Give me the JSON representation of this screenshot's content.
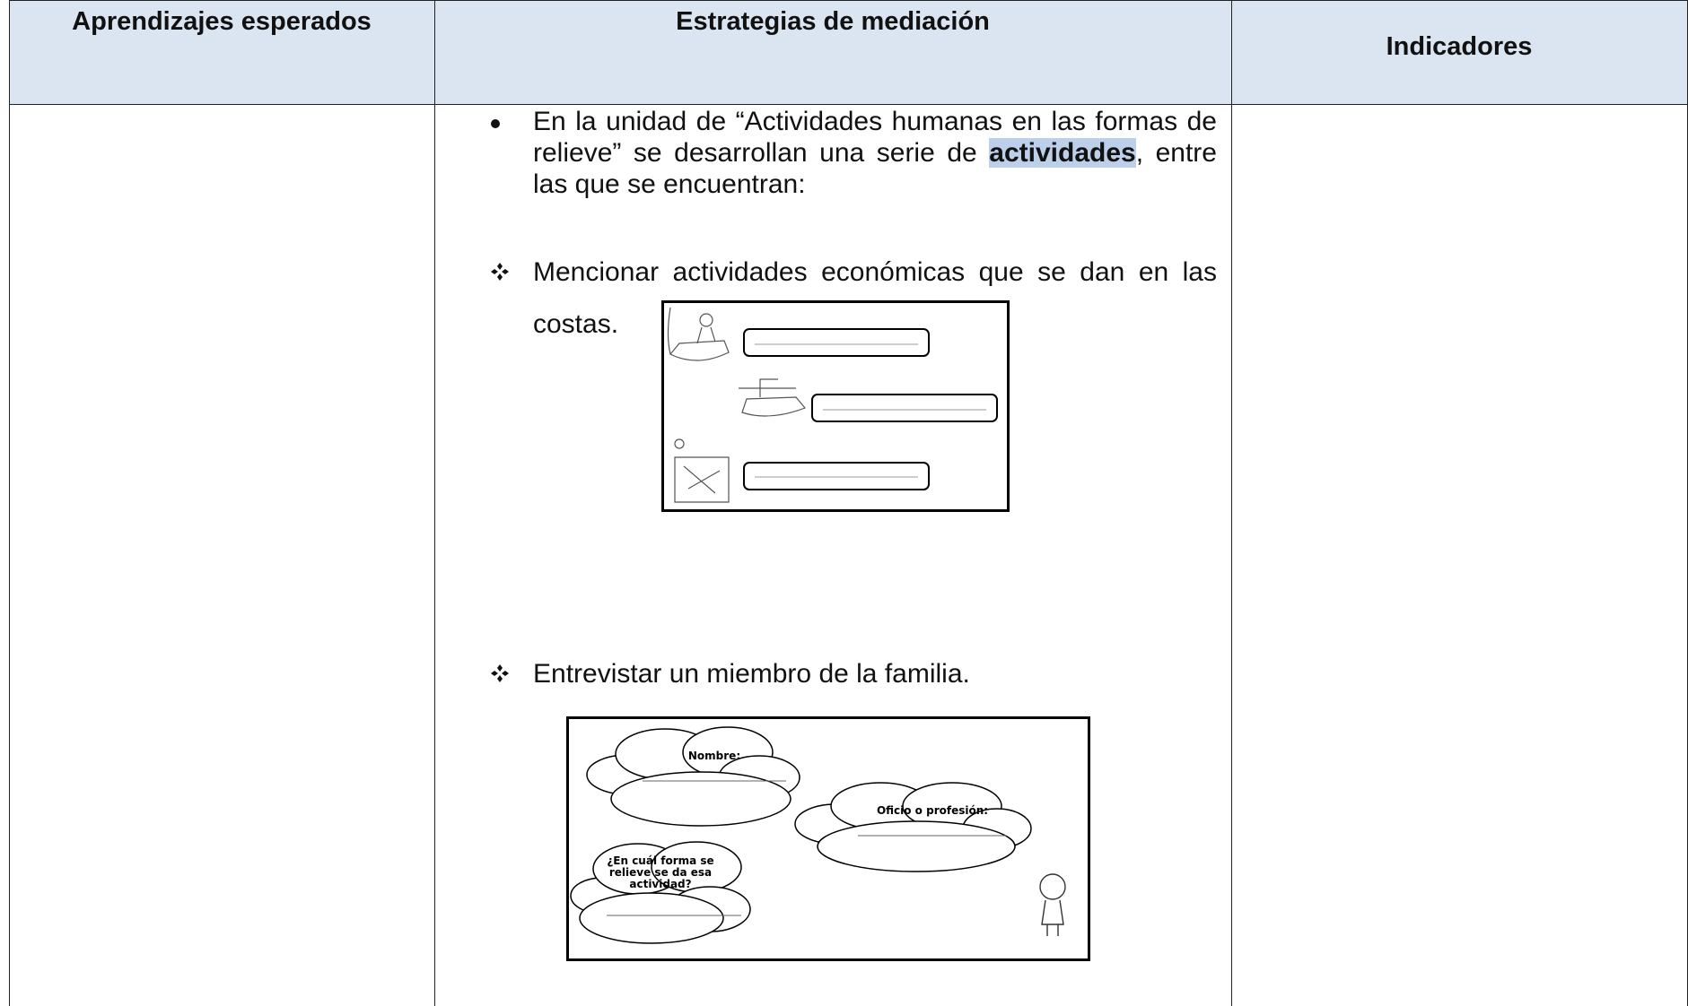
{
  "header": {
    "columns": [
      "Aprendizajes esperados",
      "Estrategias de mediación",
      "Indicadores"
    ]
  },
  "body": {
    "intro": {
      "before": "En la unidad de “Actividades humanas en las formas de relieve” se desarrollan una serie de ",
      "bold": "actividades",
      "after": ", entre las que se encuentran:"
    },
    "items": [
      {
        "text": "Mencionar actividades económicas que se dan en las costas."
      },
      {
        "text": "Entrevistar un miembro de la familia.",
        "worksheet": {
          "name_label": "Nombre:",
          "job_label": "Oficio o profesión:",
          "question": "¿En cuál forma se relieve se da esa actividad?"
        }
      }
    ]
  }
}
